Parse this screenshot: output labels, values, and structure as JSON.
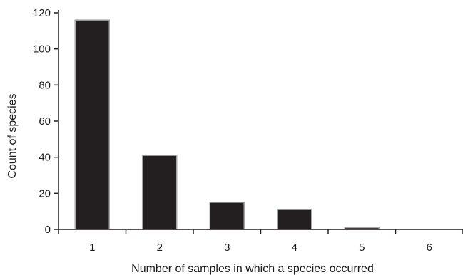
{
  "chart_data": {
    "type": "bar",
    "title": "",
    "xlabel": "Number of samples in which a species occurred",
    "ylabel": "Count of species",
    "categories": [
      "1",
      "2",
      "3",
      "4",
      "5",
      "6"
    ],
    "values": [
      116,
      41,
      15,
      11,
      1,
      0
    ],
    "ylim": [
      0,
      120
    ],
    "yticks": [
      "0",
      "20",
      "40",
      "60",
      "80",
      "100",
      "120"
    ],
    "grid": false,
    "legend": "none",
    "bar_color": "#231f20",
    "bar_edge_color": "#a6a6a6",
    "axis_color": "#231f20"
  }
}
